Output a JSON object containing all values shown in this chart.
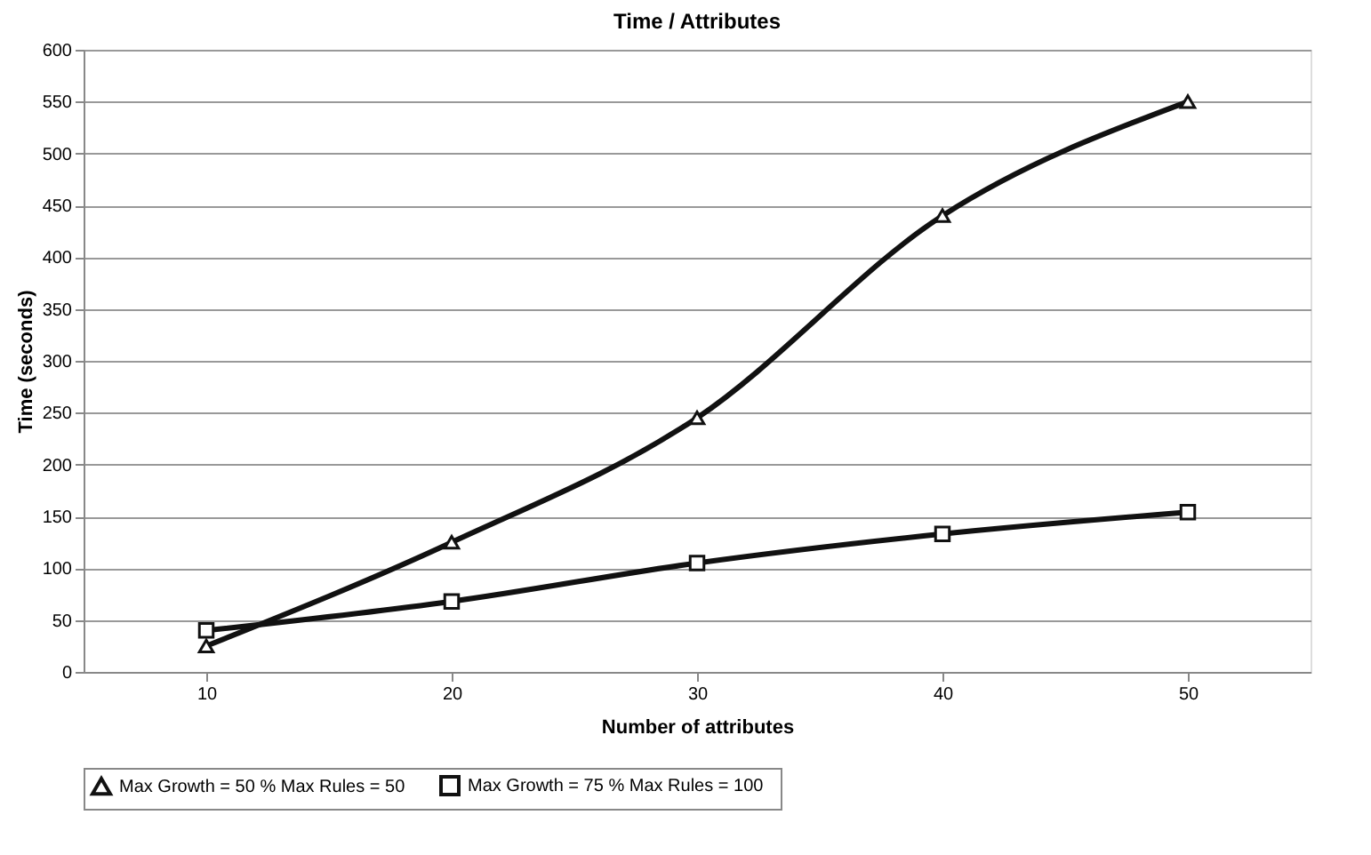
{
  "chart_data": {
    "type": "line",
    "title": "Time / Attributes",
    "xlabel": "Number of attributes",
    "ylabel": "Time (seconds)",
    "categories": [
      "10",
      "20",
      "30",
      "40",
      "50"
    ],
    "series": [
      {
        "name": "Max Growth = 50 %   Max Rules = 50",
        "color": "#111111",
        "marker": "triangle",
        "values": [
          25,
          125,
          245,
          440,
          550
        ]
      },
      {
        "name": "Max Growth = 75 %   Max Rules = 100",
        "color": "#111111",
        "marker": "square",
        "values": [
          40,
          68,
          105,
          133,
          154
        ]
      }
    ],
    "ylim": [
      0,
      600
    ],
    "yticks": [
      0,
      50,
      100,
      150,
      200,
      250,
      300,
      350,
      400,
      450,
      500,
      550,
      600
    ],
    "grid": "y",
    "legend": "bottom",
    "line_style": "solid"
  }
}
